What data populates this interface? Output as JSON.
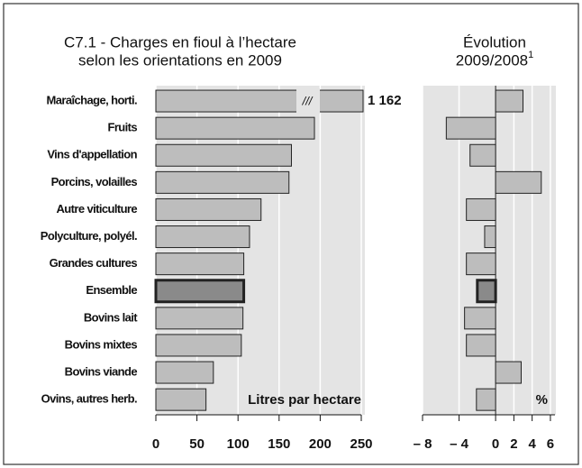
{
  "chart_data": [
    {
      "type": "bar",
      "orientation": "horizontal",
      "title": [
        "C7.1 - Charges en fioul à l’hectare",
        "selon les orientations en 2009"
      ],
      "axis_label": "Litres par hectare",
      "categories": [
        "Maraîchage, horti.",
        "Fruits",
        "Vins d'appellation",
        "Porcins, volailles",
        "Autre viticulture",
        "Polyculture, polyél.",
        "Grandes cultures",
        "Ensemble",
        "Bovins lait",
        "Bovins mixtes",
        "Bovins viande",
        "Ovins, autres herb."
      ],
      "values": [
        1162,
        193,
        165,
        162,
        128,
        114,
        107,
        107,
        106,
        104,
        70,
        61
      ],
      "value_labels": [
        "1 162",
        null,
        null,
        null,
        null,
        null,
        null,
        null,
        null,
        null,
        null,
        null
      ],
      "color": "#bdbdbd",
      "highlight": {
        "index": 7,
        "color": "#8a8a8a"
      },
      "xlim": [
        0,
        250
      ],
      "xticks": [
        0,
        50,
        100,
        150,
        200,
        250
      ],
      "grid": true
    },
    {
      "type": "bar",
      "orientation": "horizontal",
      "title": [
        "Évolution",
        "2009/2008"
      ],
      "title_sup": "1",
      "axis_label": "%",
      "values": [
        3.0,
        -5.4,
        -2.8,
        5.0,
        -3.2,
        -1.2,
        -3.2,
        -2.0,
        -3.4,
        -3.2,
        2.8,
        -2.1
      ],
      "color": "#bdbdbd",
      "highlight": {
        "index": 7,
        "color": "#8a8a8a"
      },
      "xlim": [
        -8,
        6.5
      ],
      "xticks": [
        {
          "value": -8,
          "label": "– 8"
        },
        {
          "value": -4,
          "label": "– 4"
        },
        0,
        2,
        4,
        6
      ],
      "grid": true
    }
  ]
}
